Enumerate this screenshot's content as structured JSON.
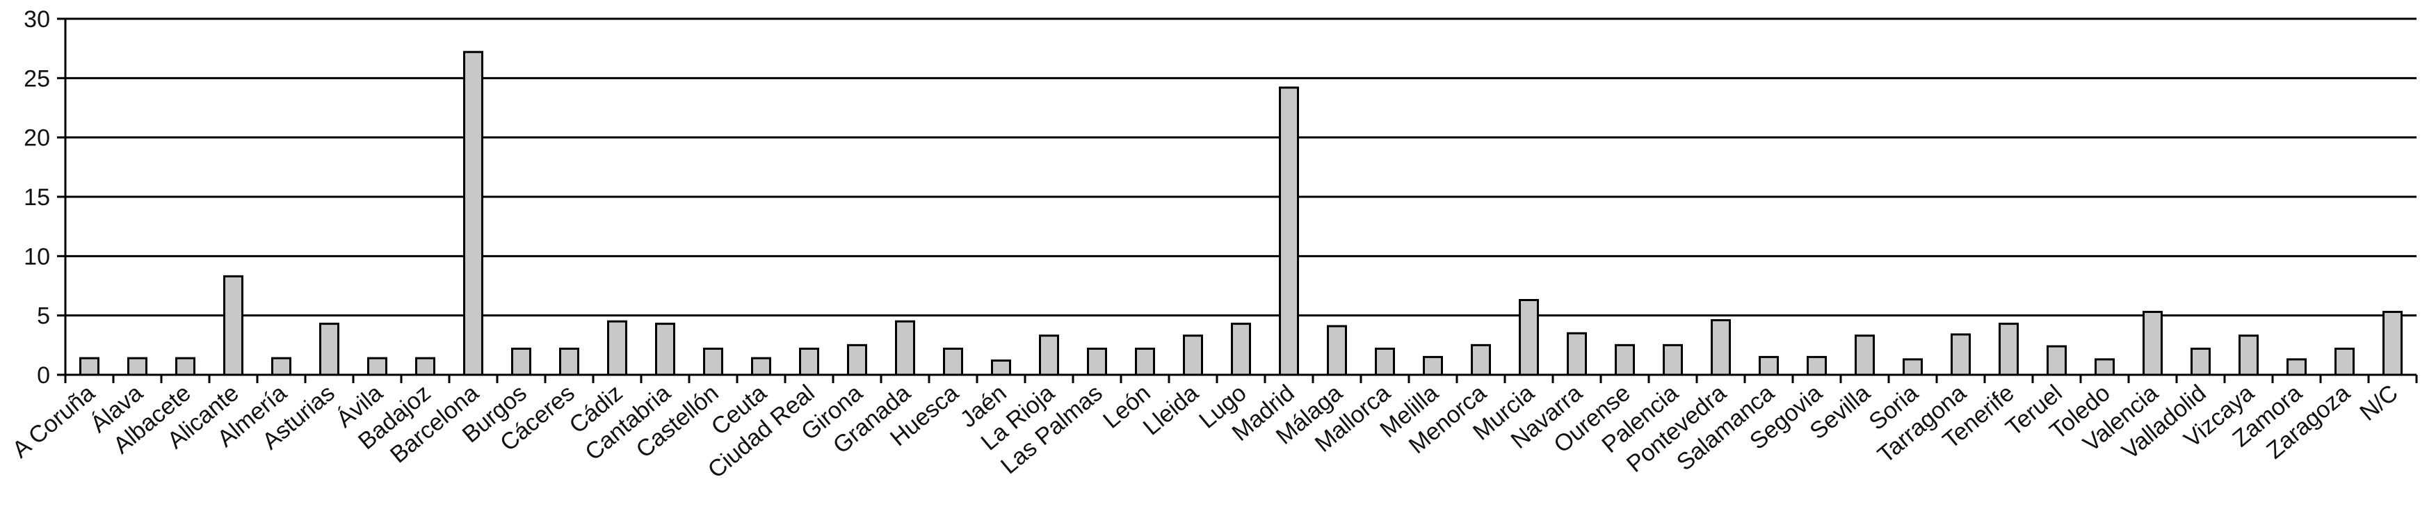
{
  "chart_data": {
    "type": "bar",
    "categories": [
      "A Coruña",
      "Álava",
      "Albacete",
      "Alicante",
      "Almería",
      "Asturias",
      "Ávila",
      "Badajoz",
      "Barcelona",
      "Burgos",
      "Cáceres",
      "Cádiz",
      "Cantabria",
      "Castellón",
      "Ceuta",
      "Ciudad Real",
      "Girona",
      "Granada",
      "Huesca",
      "Jaén",
      "La Rioja",
      "Las Palmas",
      "León",
      "Lleida",
      "Lugo",
      "Madrid",
      "Málaga",
      "Mallorca",
      "Melilla",
      "Menorca",
      "Murcia",
      "Navarra",
      "Ourense",
      "Palencia",
      "Pontevedra",
      "Salamanca",
      "Segovia",
      "Sevilla",
      "Soria",
      "Tarragona",
      "Tenerife",
      "Teruel",
      "Toledo",
      "Valencia",
      "Valladolid",
      "Vizcaya",
      "Zamora",
      "Zaragoza",
      "N/C"
    ],
    "values": [
      1.4,
      1.4,
      1.4,
      8.3,
      1.4,
      4.3,
      1.4,
      1.4,
      27.2,
      2.2,
      2.2,
      4.5,
      4.3,
      2.2,
      1.4,
      2.2,
      2.5,
      4.5,
      2.2,
      1.2,
      3.3,
      2.2,
      2.2,
      3.3,
      4.3,
      24.2,
      4.1,
      2.2,
      1.5,
      2.5,
      6.3,
      3.5,
      2.5,
      2.5,
      4.6,
      1.5,
      1.5,
      3.3,
      1.3,
      3.4,
      4.3,
      2.4,
      1.3,
      5.3,
      2.2,
      3.3,
      1.3,
      2.2,
      5.3
    ],
    "color": "#c8c8c8",
    "ylim": [
      0,
      30
    ],
    "yticks": [
      0,
      5,
      10,
      15,
      20,
      25,
      30
    ],
    "grid": true
  }
}
